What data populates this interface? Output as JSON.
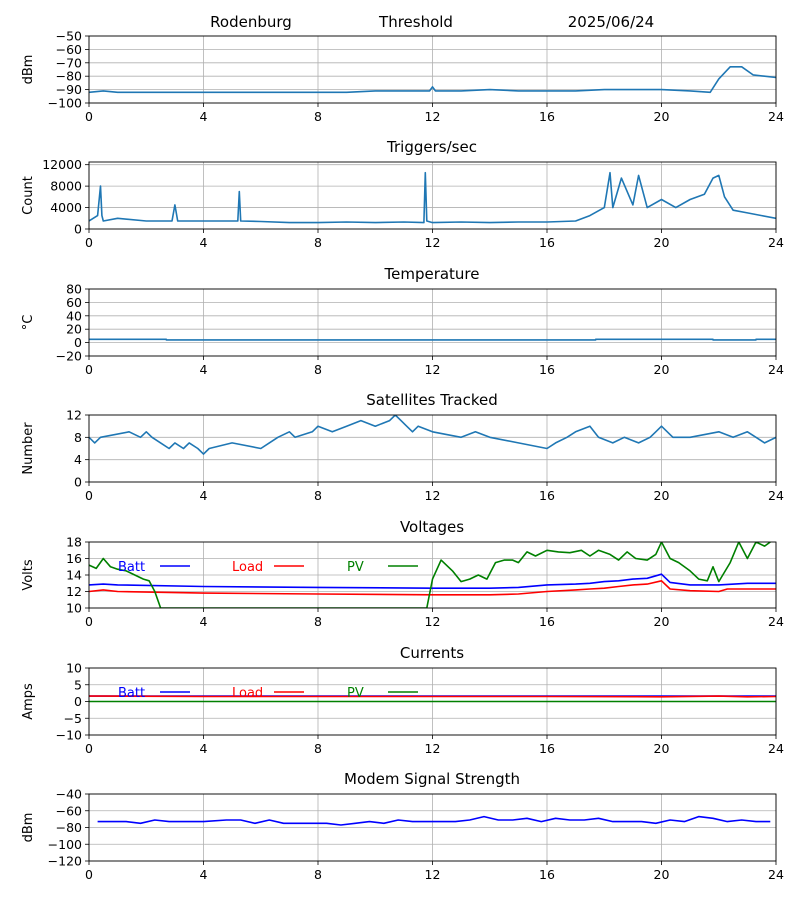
{
  "header": {
    "station": "Rodenburg",
    "mode": "Threshold",
    "date": "2025/06/24"
  },
  "chart_data": [
    {
      "id": "threshold",
      "type": "line",
      "title": "",
      "ylabel": "dBm",
      "xlim": [
        0,
        24
      ],
      "ylim": [
        -100,
        -50
      ],
      "yticks": [
        -100,
        -90,
        -80,
        -70,
        -60,
        -50
      ],
      "xticks": [
        0,
        4,
        8,
        12,
        16,
        20,
        24
      ],
      "grid": true,
      "series": [
        {
          "color": "#1f77b4",
          "x": [
            0,
            0.5,
            1,
            2,
            3,
            4,
            5,
            6,
            7,
            8,
            9,
            10,
            11,
            11.9,
            12,
            12.1,
            13,
            14,
            15,
            16,
            17,
            18,
            19,
            20,
            21,
            21.7,
            22,
            22.4,
            22.8,
            23.2,
            23.6,
            24
          ],
          "y": [
            -92,
            -91,
            -92,
            -92,
            -92,
            -92,
            -92,
            -92,
            -92,
            -92,
            -92,
            -91,
            -91,
            -91,
            -88,
            -91,
            -91,
            -90,
            -91,
            -91,
            -91,
            -90,
            -90,
            -90,
            -91,
            -92,
            -82,
            -73,
            -73,
            -79,
            -80,
            -81
          ]
        }
      ]
    },
    {
      "id": "triggers",
      "type": "line",
      "title": "Triggers/sec",
      "ylabel": "Count",
      "xlim": [
        0,
        24
      ],
      "ylim": [
        0,
        12500
      ],
      "yticks": [
        0,
        4000,
        8000,
        12000
      ],
      "xticks": [
        0,
        4,
        8,
        12,
        16,
        20,
        24
      ],
      "grid": true,
      "series": [
        {
          "color": "#1f77b4",
          "x": [
            0,
            0.3,
            0.4,
            0.45,
            0.5,
            1,
            2,
            2.9,
            3,
            3.1,
            4,
            5.2,
            5.25,
            5.3,
            6,
            7,
            8,
            9,
            10,
            11,
            11.7,
            11.75,
            11.8,
            12,
            13,
            14,
            15,
            16,
            17,
            17.5,
            18,
            18.2,
            18.3,
            18.6,
            19,
            19.2,
            19.5,
            20,
            20.5,
            21,
            21.5,
            21.8,
            22,
            22.2,
            22.5,
            23,
            23.5,
            24
          ],
          "y": [
            1500,
            2500,
            8000,
            2500,
            1500,
            2000,
            1500,
            1500,
            4500,
            1500,
            1500,
            1500,
            7000,
            1500,
            1400,
            1200,
            1200,
            1300,
            1200,
            1300,
            1200,
            10500,
            1500,
            1200,
            1300,
            1200,
            1300,
            1300,
            1500,
            2500,
            4000,
            10500,
            4000,
            9500,
            4500,
            10000,
            4000,
            5500,
            4000,
            5500,
            6500,
            9500,
            10000,
            6000,
            3500,
            3000,
            2500,
            2000
          ]
        }
      ]
    },
    {
      "id": "temperature",
      "type": "line",
      "title": "Temperature",
      "ylabel": "°C",
      "xlim": [
        0,
        24
      ],
      "ylim": [
        -20,
        80
      ],
      "yticks": [
        -20,
        0,
        20,
        40,
        60,
        80
      ],
      "xticks": [
        0,
        4,
        8,
        12,
        16,
        20,
        24
      ],
      "grid": true,
      "series": [
        {
          "color": "#1f77b4",
          "x": [
            0,
            2.7,
            2.7,
            17.7,
            17.7,
            21.8,
            21.8,
            23.3,
            23.3,
            24
          ],
          "y": [
            5,
            5,
            4,
            4,
            5,
            5,
            4,
            4,
            5,
            5
          ]
        }
      ]
    },
    {
      "id": "satellites",
      "type": "line",
      "title": "Satellites Tracked",
      "ylabel": "Number",
      "xlim": [
        0,
        24
      ],
      "ylim": [
        0,
        12
      ],
      "yticks": [
        0,
        4,
        8,
        12
      ],
      "xticks": [
        0,
        4,
        8,
        12,
        16,
        20,
        24
      ],
      "grid": true,
      "series": [
        {
          "color": "#1f77b4",
          "x": [
            0,
            0.2,
            0.4,
            1.4,
            1.8,
            2.0,
            2.2,
            2.5,
            2.8,
            3.0,
            3.3,
            3.5,
            3.8,
            4.0,
            4.2,
            5.0,
            6.0,
            6.3,
            6.6,
            7.0,
            7.2,
            7.8,
            8.0,
            8.5,
            9.0,
            9.5,
            10.0,
            10.5,
            10.7,
            10.9,
            11.1,
            11.3,
            11.5,
            12.0,
            13.0,
            13.5,
            14.0,
            15.0,
            16.0,
            16.3,
            16.7,
            17.0,
            17.5,
            17.8,
            18.3,
            18.7,
            19.2,
            19.6,
            19.8,
            20.0,
            20.4,
            21.0,
            22.0,
            22.5,
            23.0,
            23.3,
            23.6,
            24.0
          ],
          "y": [
            8,
            7,
            8,
            9,
            8,
            9,
            8,
            7,
            6,
            7,
            6,
            7,
            6,
            5,
            6,
            7,
            6,
            7,
            8,
            9,
            8,
            9,
            10,
            9,
            10,
            11,
            10,
            11,
            12,
            11,
            10,
            9,
            10,
            9,
            8,
            9,
            8,
            7,
            6,
            7,
            8,
            9,
            10,
            8,
            7,
            8,
            7,
            8,
            9,
            10,
            8,
            8,
            9,
            8,
            9,
            8,
            7,
            8
          ]
        }
      ]
    },
    {
      "id": "voltages",
      "type": "line",
      "title": "Voltages",
      "ylabel": "Volts",
      "xlim": [
        0,
        24
      ],
      "ylim": [
        10,
        18
      ],
      "yticks": [
        10,
        12,
        14,
        16,
        18
      ],
      "xticks": [
        0,
        4,
        8,
        12,
        16,
        20,
        24
      ],
      "grid": true,
      "legend": [
        "Batt",
        "Load",
        "PV"
      ],
      "series": [
        {
          "name": "Batt",
          "color": "#0000ff",
          "x": [
            0,
            0.5,
            1,
            4,
            8,
            12,
            14,
            15,
            16,
            17,
            17.5,
            18,
            18.5,
            19,
            19.5,
            20,
            20.3,
            21,
            22,
            23,
            24
          ],
          "y": [
            12.8,
            12.9,
            12.8,
            12.6,
            12.5,
            12.4,
            12.4,
            12.5,
            12.8,
            12.9,
            13.0,
            13.2,
            13.3,
            13.5,
            13.6,
            14.1,
            13.1,
            12.8,
            12.8,
            13.0,
            13.0
          ]
        },
        {
          "name": "Load",
          "color": "#ff0000",
          "x": [
            0,
            0.5,
            1,
            4,
            8,
            12,
            14,
            15,
            16,
            17,
            17.5,
            18,
            18.5,
            19,
            19.5,
            20,
            20.3,
            21,
            22,
            22.3,
            23,
            24
          ],
          "y": [
            12.0,
            12.2,
            12.0,
            11.8,
            11.7,
            11.6,
            11.6,
            11.7,
            12.0,
            12.2,
            12.3,
            12.4,
            12.6,
            12.8,
            12.9,
            13.3,
            12.3,
            12.1,
            12.0,
            12.3,
            12.3,
            12.3
          ]
        },
        {
          "name": "PV",
          "color": "#008000",
          "x": [
            0,
            0.25,
            0.5,
            0.75,
            1.0,
            1.3,
            1.6,
            1.9,
            2.1,
            2.3,
            2.5,
            11.8,
            12.0,
            12.3,
            12.7,
            13.0,
            13.3,
            13.6,
            13.9,
            14.2,
            14.5,
            14.8,
            15.0,
            15.3,
            15.6,
            16.0,
            16.4,
            16.8,
            17.2,
            17.5,
            17.8,
            18.2,
            18.5,
            18.8,
            19.1,
            19.5,
            19.8,
            20.0,
            20.3,
            20.6,
            21.0,
            21.3,
            21.6,
            21.8,
            22.0,
            22.4,
            22.7,
            23.0,
            23.3,
            23.6,
            23.8
          ],
          "y": [
            15.2,
            14.8,
            16.0,
            15.0,
            14.7,
            14.5,
            14.0,
            13.5,
            13.3,
            12.0,
            10.0,
            10.0,
            13.5,
            15.8,
            14.5,
            13.2,
            13.5,
            14.0,
            13.5,
            15.5,
            15.8,
            15.8,
            15.5,
            16.8,
            16.3,
            17.0,
            16.8,
            16.7,
            17.0,
            16.3,
            17.0,
            16.5,
            15.8,
            16.8,
            16.0,
            15.8,
            16.5,
            18.0,
            16.0,
            15.5,
            14.5,
            13.5,
            13.3,
            15.0,
            13.2,
            15.5,
            18.0,
            16.0,
            18.0,
            17.5,
            18.0
          ]
        }
      ]
    },
    {
      "id": "currents",
      "type": "line",
      "title": "Currents",
      "ylabel": "Amps",
      "xlim": [
        0,
        24
      ],
      "ylim": [
        -10,
        10
      ],
      "yticks": [
        -10,
        -5,
        0,
        5,
        10
      ],
      "xticks": [
        0,
        4,
        8,
        12,
        16,
        20,
        24
      ],
      "grid": true,
      "legend": [
        "Batt",
        "Load",
        "PV"
      ],
      "series": [
        {
          "name": "Batt",
          "color": "#0000ff",
          "x": [
            0,
            24
          ],
          "y": [
            1.6,
            1.6
          ]
        },
        {
          "name": "PV",
          "color": "#008000",
          "x": [
            0,
            24
          ],
          "y": [
            0,
            0
          ]
        },
        {
          "name": "Load",
          "color": "#ff0000",
          "x": [
            0,
            0.5,
            4,
            8,
            12,
            16,
            20,
            22,
            23,
            24
          ],
          "y": [
            1.6,
            1.6,
            1.5,
            1.5,
            1.5,
            1.5,
            1.4,
            1.6,
            1.4,
            1.5
          ]
        }
      ]
    },
    {
      "id": "modem",
      "type": "line",
      "title": "Modem Signal Strength",
      "ylabel": "dBm",
      "xlim": [
        0,
        24
      ],
      "ylim": [
        -120,
        -40
      ],
      "yticks": [
        -120,
        -100,
        -80,
        -60,
        -40
      ],
      "xticks": [
        0,
        4,
        8,
        12,
        16,
        20,
        24
      ],
      "grid": true,
      "series": [
        {
          "color": "#0000ff",
          "x": [
            0.3,
            1.3,
            1.8,
            2.3,
            2.8,
            3.3,
            4.0,
            4.8,
            5.3,
            5.8,
            6.3,
            6.8,
            7.3,
            8.3,
            8.8,
            9.3,
            9.8,
            10.3,
            10.8,
            11.3,
            11.8,
            12.8,
            13.3,
            13.8,
            14.3,
            14.8,
            15.3,
            15.8,
            16.3,
            16.8,
            17.3,
            17.8,
            18.3,
            18.8,
            19.3,
            19.8,
            20.3,
            20.8,
            21.3,
            21.8,
            22.3,
            22.8,
            23.3,
            23.8
          ],
          "y": [
            -73,
            -73,
            -75,
            -71,
            -73,
            -73,
            -73,
            -71,
            -71,
            -75,
            -71,
            -75,
            -75,
            -75,
            -77,
            -75,
            -73,
            -75,
            -71,
            -73,
            -73,
            -73,
            -71,
            -67,
            -71,
            -71,
            -69,
            -73,
            -69,
            -71,
            -71,
            -69,
            -73,
            -73,
            -73,
            -75,
            -71,
            -73,
            -67,
            -69,
            -73,
            -71,
            -73,
            -73
          ]
        }
      ]
    }
  ]
}
